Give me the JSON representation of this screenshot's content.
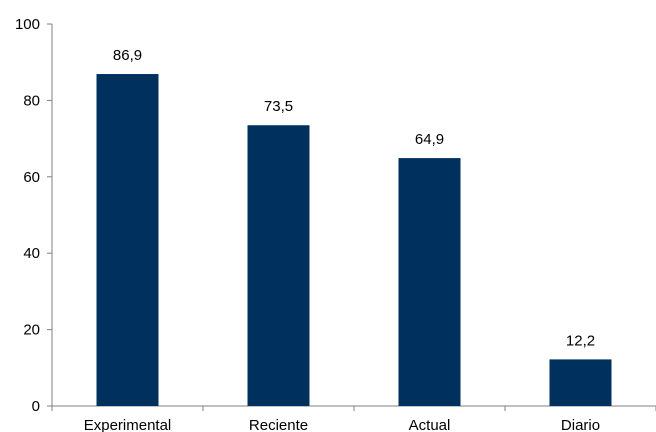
{
  "chart_data": {
    "type": "bar",
    "categories": [
      "Experimental",
      "Reciente",
      "Actual",
      "Diario"
    ],
    "values": [
      86.9,
      73.5,
      64.9,
      12.2
    ],
    "value_labels": [
      "86,9",
      "73,5",
      "64,9",
      "12,2"
    ],
    "yticks": [
      0,
      20,
      40,
      60,
      80,
      100
    ],
    "ylim": [
      0,
      100
    ],
    "grid": false,
    "legend": "none",
    "bar_color": "#00305E"
  }
}
